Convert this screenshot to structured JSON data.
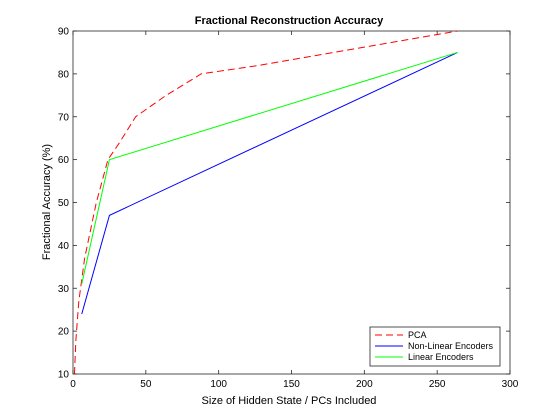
{
  "chart_data": {
    "type": "line",
    "title": "Fractional Reconstruction Accuracy",
    "xlabel": "Size of Hidden State / PCs Included",
    "ylabel": "Fractional Accuracy (%)",
    "xlim": [
      0,
      300
    ],
    "ylim": [
      10,
      90
    ],
    "xticks": [
      0,
      50,
      100,
      150,
      200,
      250,
      300
    ],
    "yticks": [
      10,
      20,
      30,
      40,
      50,
      60,
      70,
      80,
      90
    ],
    "grid": false,
    "legend_position": "bottom-right",
    "series": [
      {
        "name": "PCA",
        "color": "#ff0000",
        "dash": "dashed",
        "x": [
          1,
          2,
          4,
          8,
          16,
          24,
          32,
          43,
          64,
          88,
          128,
          264
        ],
        "y": [
          10,
          18,
          27,
          37,
          50,
          60,
          64,
          70,
          75,
          80,
          82,
          90
        ]
      },
      {
        "name": "Non-Linear Encoders",
        "color": "#0000ff",
        "dash": "solid",
        "x": [
          6,
          25,
          264
        ],
        "y": [
          24,
          47,
          85
        ]
      },
      {
        "name": "Linear Encoders",
        "color": "#00ff00",
        "dash": "solid",
        "x": [
          6,
          25,
          264
        ],
        "y": [
          31,
          60,
          85
        ]
      }
    ]
  }
}
